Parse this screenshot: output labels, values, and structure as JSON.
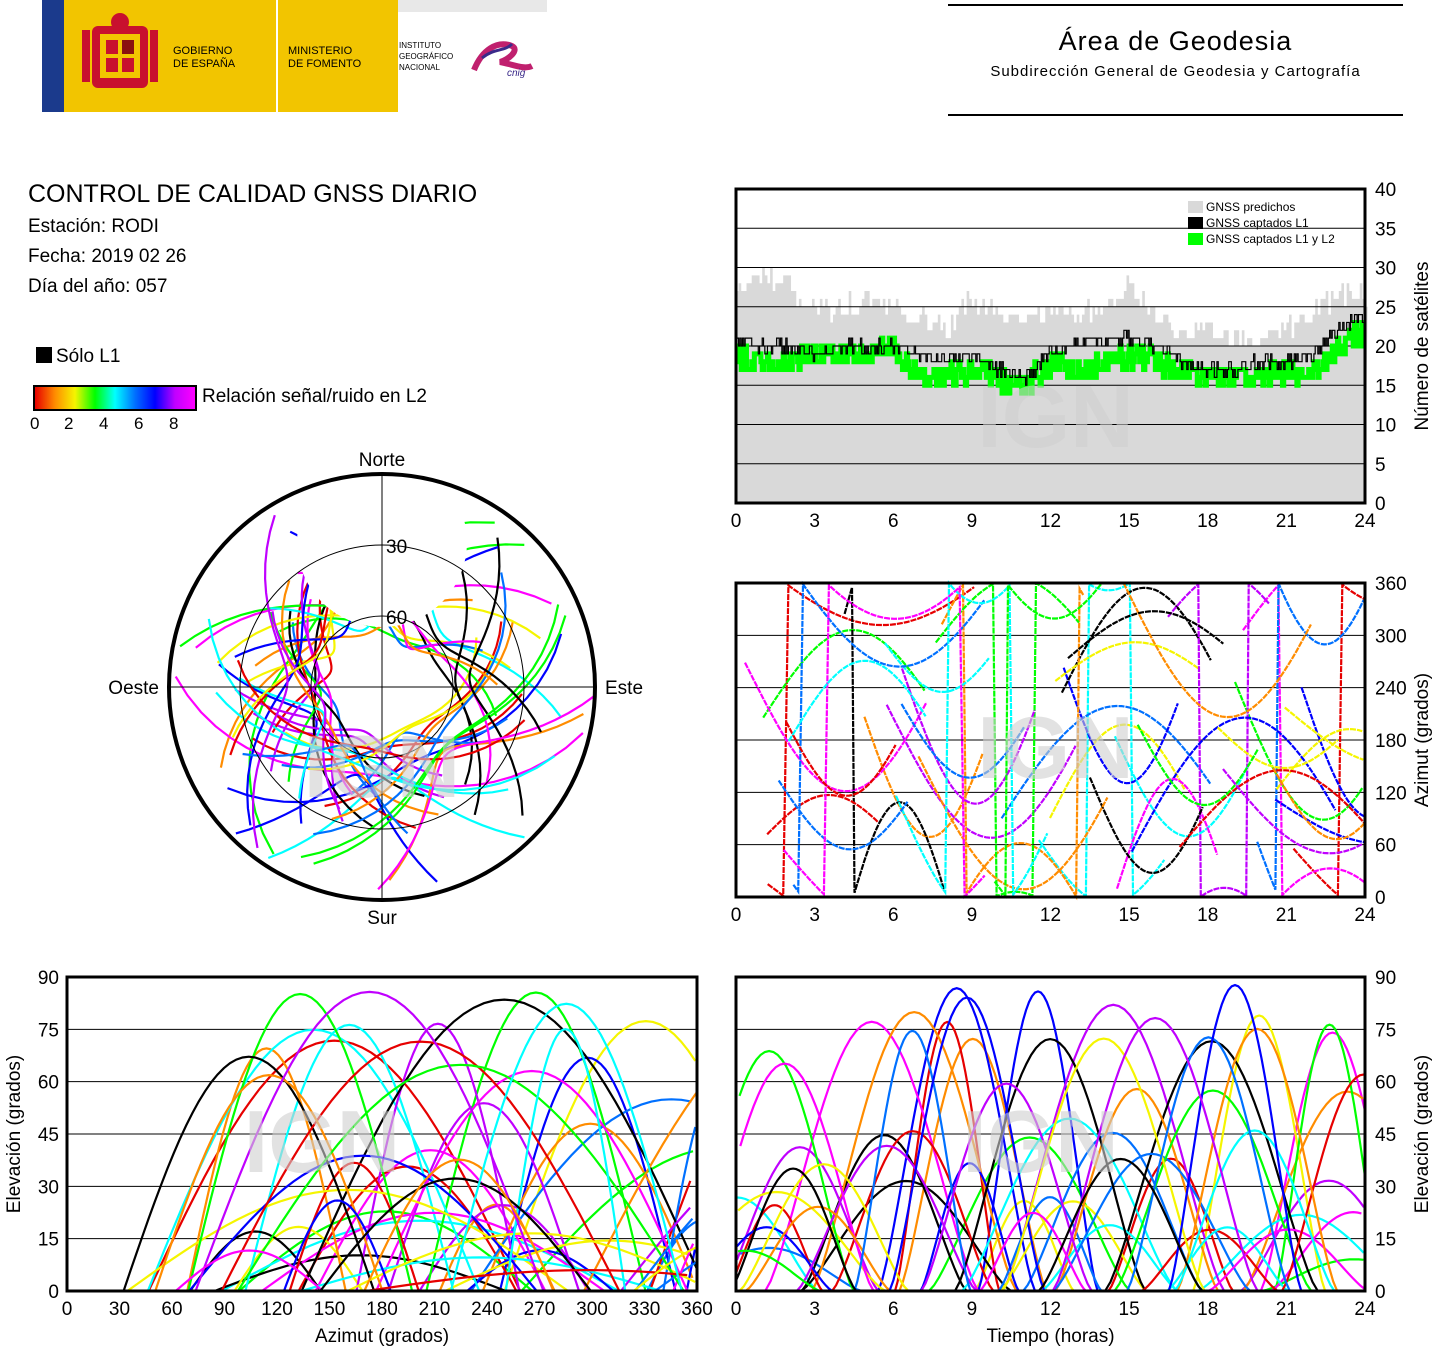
{
  "header": {
    "gov_name": [
      "GOBIERNO",
      "DE ESPAÑA"
    ],
    "ministry": [
      "MINISTERIO",
      "DE FOMENTO"
    ],
    "institute": [
      "INSTITUTO",
      "GEOGRÁFICO",
      "NACIONAL"
    ],
    "cnig": "cnig",
    "area_title": "Área de Geodesia",
    "area_subtitle": "Subdirección General de Geodesia y Cartografía"
  },
  "info": {
    "title": "CONTROL DE CALIDAD GNSS DIARIO",
    "station": "Estación: RODI",
    "date": "Fecha: 2019 02 26",
    "doy": "Día del año: 057"
  },
  "legend": {
    "only_l1": "Sólo L1",
    "snr_label": "Relación señal/ruido en L2",
    "snr_ticks": [
      "0",
      "2",
      "4",
      "6",
      "8"
    ]
  },
  "colors": {
    "predicted": "#d9d9d9",
    "l1": "#000000",
    "l1l2": "#00ff00",
    "track_palette": [
      "#e60000",
      "#ff8c00",
      "#f5f500",
      "#00ff00",
      "#00ffff",
      "#0070ff",
      "#0000ff",
      "#c000ff",
      "#ff00ff",
      "#000000"
    ]
  },
  "watermark": "IGN",
  "chart_data": [
    {
      "id": "satellite-count",
      "type": "area",
      "xlabel": "",
      "ylabel": "Número de satélites",
      "xlim": [
        0,
        24
      ],
      "ylim": [
        0,
        40
      ],
      "xticks": [
        "0",
        "3",
        "6",
        "9",
        "12",
        "15",
        "18",
        "21",
        "24"
      ],
      "yticks": [
        "0",
        "5",
        "10",
        "15",
        "20",
        "25",
        "30",
        "35",
        "40"
      ],
      "grid": true,
      "legend_position": "top-right",
      "x": [
        0,
        1,
        2,
        3,
        4,
        5,
        6,
        7,
        8,
        9,
        10,
        11,
        12,
        13,
        14,
        15,
        16,
        17,
        18,
        19,
        20,
        21,
        22,
        23,
        24
      ],
      "series": [
        {
          "name": "GNSS predichos",
          "values": [
            28,
            29,
            28,
            24,
            25,
            26,
            25,
            24,
            22,
            26,
            24,
            23,
            25,
            24,
            25,
            28,
            24,
            22,
            22,
            21,
            22,
            22,
            24,
            27,
            26
          ]
        },
        {
          "name": "GNSS captados L1",
          "values": [
            21,
            20,
            20,
            19,
            20,
            20,
            20,
            19,
            18,
            19,
            17,
            16,
            19,
            20,
            21,
            21,
            20,
            18,
            17,
            17,
            18,
            18,
            19,
            22,
            24
          ]
        },
        {
          "name": "GNSS captados L1 y L2",
          "values": [
            19,
            18,
            18,
            19,
            19,
            19,
            20,
            16,
            16,
            17,
            16,
            15,
            18,
            17,
            18,
            19,
            18,
            17,
            16,
            16,
            16,
            17,
            16,
            20,
            22
          ]
        }
      ]
    },
    {
      "id": "azimuth-time",
      "type": "scatter",
      "xlabel": "",
      "ylabel": "Azimut (grados)",
      "xlim": [
        0,
        24
      ],
      "ylim": [
        0,
        360
      ],
      "xticks": [
        "0",
        "3",
        "6",
        "9",
        "12",
        "15",
        "18",
        "21",
        "24"
      ],
      "yticks": [
        "0",
        "60",
        "120",
        "180",
        "240",
        "300",
        "360"
      ],
      "grid": true
    },
    {
      "id": "skyplot",
      "type": "scatter",
      "labels": {
        "north": "Norte",
        "south": "Sur",
        "west": "Oeste",
        "east": "Este"
      },
      "rings": [
        "30",
        "60"
      ]
    },
    {
      "id": "elevation-azimuth",
      "type": "scatter",
      "xlabel": "Azimut (grados)",
      "ylabel": "Elevación (grados)",
      "xlim": [
        0,
        360
      ],
      "ylim": [
        0,
        90
      ],
      "xticks": [
        "0",
        "30",
        "60",
        "90",
        "120",
        "150",
        "180",
        "210",
        "240",
        "270",
        "300",
        "330",
        "360"
      ],
      "yticks": [
        "0",
        "15",
        "30",
        "45",
        "60",
        "75",
        "90"
      ],
      "grid": true
    },
    {
      "id": "elevation-time",
      "type": "scatter",
      "xlabel": "Tiempo (horas)",
      "ylabel": "Elevación (grados)",
      "xlim": [
        0,
        24
      ],
      "ylim": [
        0,
        90
      ],
      "xticks": [
        "0",
        "3",
        "6",
        "9",
        "12",
        "15",
        "18",
        "21",
        "24"
      ],
      "yticks": [
        "0",
        "15",
        "30",
        "45",
        "60",
        "75",
        "90"
      ],
      "grid": true
    }
  ]
}
